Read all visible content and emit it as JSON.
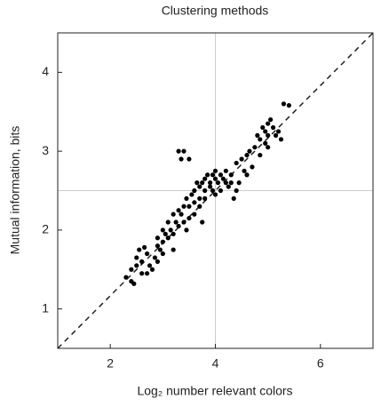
{
  "chart_data": {
    "type": "scatter",
    "title": "Clustering methods",
    "xlabel": "Log₂ number relevant colors",
    "ylabel": "Mutual information, bits",
    "xlim": [
      1,
      7
    ],
    "ylim": [
      0.5,
      4.5
    ],
    "xticks": [
      2,
      4,
      6
    ],
    "yticks": [
      1,
      2,
      3,
      4
    ],
    "color": "#000000",
    "reference_lines": {
      "x": 4,
      "y": 2.5
    },
    "diagonal": {
      "x": [
        1,
        7
      ],
      "y": [
        0.5,
        4.5
      ]
    },
    "x": [
      2.3,
      2.4,
      2.45,
      2.4,
      2.5,
      2.5,
      2.55,
      2.6,
      2.65,
      2.7,
      2.75,
      2.8,
      2.85,
      2.9,
      2.9,
      2.95,
      3.0,
      3.0,
      3.05,
      3.1,
      3.1,
      3.15,
      3.2,
      3.2,
      3.25,
      3.3,
      3.3,
      3.35,
      3.4,
      3.4,
      3.45,
      3.5,
      3.5,
      3.55,
      3.6,
      3.6,
      3.65,
      3.7,
      3.7,
      3.75,
      3.8,
      3.8,
      3.85,
      3.9,
      3.9,
      3.95,
      4.0,
      4.0,
      4.05,
      4.1,
      4.1,
      4.15,
      4.2,
      4.25,
      4.3,
      4.3,
      4.35,
      4.4,
      4.45,
      4.5,
      4.55,
      4.6,
      4.65,
      4.7,
      4.75,
      4.8,
      4.85,
      4.9,
      4.95,
      5.0,
      5.0,
      5.05,
      5.1,
      5.15,
      5.2,
      5.25,
      5.3,
      5.4,
      3.3,
      3.4,
      3.35,
      3.5,
      2.9,
      3.0,
      3.7,
      3.6,
      3.45,
      3.8,
      4.0,
      4.2,
      4.4,
      4.6,
      4.85,
      3.75,
      3.2,
      2.7,
      2.6,
      5.0,
      4.95,
      3.95
    ],
    "y": [
      1.4,
      1.35,
      1.32,
      1.5,
      1.55,
      1.65,
      1.75,
      1.6,
      1.78,
      1.7,
      1.55,
      1.5,
      1.65,
      1.8,
      1.9,
      1.75,
      1.85,
      2.0,
      1.95,
      1.9,
      2.1,
      2.0,
      2.2,
      1.95,
      2.1,
      2.05,
      2.25,
      2.2,
      2.3,
      2.1,
      2.4,
      2.3,
      2.15,
      2.45,
      2.35,
      2.5,
      2.6,
      2.4,
      2.55,
      2.6,
      2.5,
      2.65,
      2.7,
      2.6,
      2.55,
      2.7,
      2.65,
      2.75,
      2.6,
      2.7,
      2.5,
      2.65,
      2.75,
      2.55,
      2.7,
      2.6,
      2.4,
      2.85,
      2.6,
      2.9,
      2.75,
      2.95,
      3.0,
      2.8,
      3.05,
      3.2,
      3.15,
      3.3,
      3.25,
      3.35,
      3.2,
      3.4,
      3.3,
      3.2,
      3.25,
      3.15,
      3.6,
      3.58,
      3.0,
      3.0,
      2.9,
      2.9,
      1.6,
      1.7,
      2.3,
      2.2,
      2.0,
      2.4,
      2.45,
      2.6,
      2.5,
      2.7,
      2.95,
      2.1,
      1.75,
      1.45,
      1.45,
      3.05,
      3.1,
      2.5
    ]
  }
}
